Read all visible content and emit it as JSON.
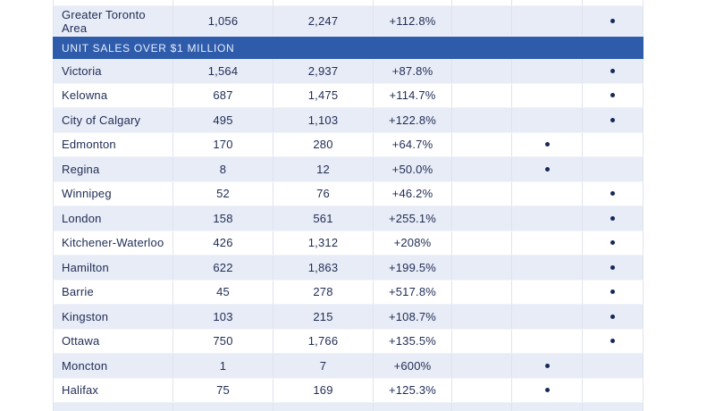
{
  "section": {
    "label": "UNIT SALES OVER $1 MILLION"
  },
  "table": {
    "rows_above_section": [
      {
        "market": "Greater Toronto Area",
        "units_before": "1,056",
        "units_after": "2,247",
        "percent_change": "+112.8%",
        "indicator_column": "B"
      }
    ],
    "rows": [
      {
        "market": "Victoria",
        "units_before": "1,564",
        "units_after": "2,937",
        "percent_change": "+87.8%",
        "indicator_column": "B"
      },
      {
        "market": "Kelowna",
        "units_before": "687",
        "units_after": "1,475",
        "percent_change": "+114.7%",
        "indicator_column": "B"
      },
      {
        "market": "City of Calgary",
        "units_before": "495",
        "units_after": "1,103",
        "percent_change": "+122.8%",
        "indicator_column": "B"
      },
      {
        "market": "Edmonton",
        "units_before": "170",
        "units_after": "280",
        "percent_change": "+64.7%",
        "indicator_column": "A"
      },
      {
        "market": "Regina",
        "units_before": "8",
        "units_after": "12",
        "percent_change": "+50.0%",
        "indicator_column": "A"
      },
      {
        "market": "Winnipeg",
        "units_before": "52",
        "units_after": "76",
        "percent_change": "+46.2%",
        "indicator_column": "B"
      },
      {
        "market": "London",
        "units_before": "158",
        "units_after": "561",
        "percent_change": "+255.1%",
        "indicator_column": "B"
      },
      {
        "market": "Kitchener-Waterloo",
        "units_before": "426",
        "units_after": "1,312",
        "percent_change": "+208%",
        "indicator_column": "B"
      },
      {
        "market": "Hamilton",
        "units_before": "622",
        "units_after": "1,863",
        "percent_change": "+199.5%",
        "indicator_column": "B"
      },
      {
        "market": "Barrie",
        "units_before": "45",
        "units_after": "278",
        "percent_change": "+517.8%",
        "indicator_column": "B"
      },
      {
        "market": "Kingston",
        "units_before": "103",
        "units_after": "215",
        "percent_change": "+108.7%",
        "indicator_column": "B"
      },
      {
        "market": "Ottawa",
        "units_before": "750",
        "units_after": "1,766",
        "percent_change": "+135.5%",
        "indicator_column": "B"
      },
      {
        "market": "Moncton",
        "units_before": "1",
        "units_after": "7",
        "percent_change": "+600%",
        "indicator_column": "A"
      },
      {
        "market": "Halifax",
        "units_before": "75",
        "units_after": "169",
        "percent_change": "+125.3%",
        "indicator_column": "A"
      }
    ]
  },
  "colors": {
    "section_band": "#2e5cab",
    "row_stripe": "#e8ecf6",
    "text": "#1f2c55",
    "dot": "#16295a",
    "column_border": "#dfe3ee"
  }
}
